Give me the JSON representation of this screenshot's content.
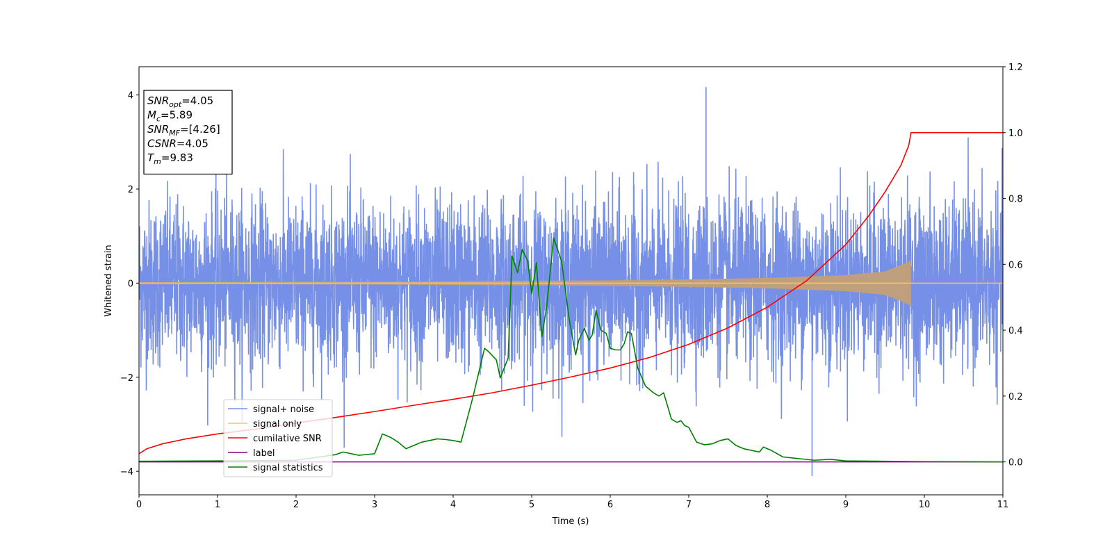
{
  "chart_data": {
    "type": "line",
    "xlabel": "Time (s)",
    "ylabel": "Whitened strain",
    "xlim": [
      0,
      11
    ],
    "ylim_left": [
      -4.5,
      4.6
    ],
    "ylim_right": [
      -0.1,
      1.2
    ],
    "x_ticks": [
      0,
      1,
      2,
      3,
      4,
      5,
      6,
      7,
      8,
      9,
      10,
      11
    ],
    "y_ticks_left": [
      -4,
      -2,
      0,
      2,
      4
    ],
    "y_ticks_right": [
      0.0,
      0.2,
      0.4,
      0.6,
      0.8,
      1.0,
      1.2
    ],
    "legend_placement": "lower-left",
    "info_box": [
      {
        "base": "SNR",
        "sub": "opt",
        "rest": "=4.05"
      },
      {
        "base": "M",
        "sub": "c",
        "rest": "=5.89"
      },
      {
        "base": "SNR",
        "sub": "MF",
        "rest": "=[4.26]"
      },
      {
        "base": "CSNR",
        "sub": "",
        "rest": "=4.05"
      },
      {
        "base": "T",
        "sub": "m",
        "rest": "=9.83"
      }
    ],
    "series": [
      {
        "name": "signal+ noise",
        "color": "#6f8ae6",
        "axis": "left",
        "kind": "noise",
        "x_range": [
          0,
          11
        ],
        "typical_range": [
          -2.0,
          2.0
        ],
        "extremes": {
          "max": 4.17,
          "min": -4.1
        }
      },
      {
        "name": "signal only",
        "color": "#f5c372",
        "fill_color": "#c0a07c",
        "axis": "left",
        "kind": "chirp",
        "x_range": [
          0,
          9.83
        ],
        "amplitude_envelope": {
          "x": [
            0,
            3,
            5,
            6,
            7,
            8,
            9,
            9.5,
            9.8,
            9.83
          ],
          "amp": [
            0.02,
            0.03,
            0.05,
            0.06,
            0.08,
            0.11,
            0.17,
            0.25,
            0.45,
            0.5
          ]
        }
      },
      {
        "name": "cumilative SNR",
        "color": "#ff0000",
        "axis": "right",
        "x": [
          0,
          0.1,
          0.3,
          0.6,
          1,
          1.5,
          2,
          2.5,
          3,
          3.5,
          4,
          4.5,
          5,
          5.5,
          6,
          6.5,
          7,
          7.5,
          8,
          8.5,
          9,
          9.3,
          9.5,
          9.7,
          9.8,
          9.83,
          11
        ],
        "y": [
          0.025,
          0.04,
          0.055,
          0.07,
          0.085,
          0.1,
          0.118,
          0.135,
          0.153,
          0.172,
          0.19,
          0.21,
          0.233,
          0.258,
          0.285,
          0.317,
          0.357,
          0.407,
          0.47,
          0.55,
          0.66,
          0.75,
          0.82,
          0.9,
          0.96,
          1.0,
          1.0
        ]
      },
      {
        "name": "label",
        "color": "#800080",
        "axis": "right",
        "x": [
          0,
          11
        ],
        "y": [
          0.0,
          0.0
        ]
      },
      {
        "name": "signal statistics",
        "color": "#008000",
        "axis": "right",
        "x": [
          0,
          1,
          2,
          2.3,
          2.5,
          2.6,
          2.8,
          3.0,
          3.1,
          3.2,
          3.3,
          3.4,
          3.5,
          3.6,
          3.7,
          3.8,
          3.9,
          4.0,
          4.1,
          4.2,
          4.25,
          4.4,
          4.45,
          4.55,
          4.6,
          4.7,
          4.75,
          4.82,
          4.88,
          4.95,
          5.0,
          5.06,
          5.13,
          5.19,
          5.28,
          5.38,
          5.48,
          5.56,
          5.6,
          5.67,
          5.73,
          5.77,
          5.82,
          5.88,
          5.95,
          6.0,
          6.07,
          6.13,
          6.18,
          6.22,
          6.27,
          6.35,
          6.45,
          6.55,
          6.62,
          6.68,
          6.78,
          6.85,
          6.9,
          6.95,
          7.0,
          7.1,
          7.2,
          7.3,
          7.4,
          7.5,
          7.6,
          7.7,
          7.8,
          7.9,
          7.95,
          8.05,
          8.2,
          8.4,
          8.6,
          8.8,
          9.0,
          9.5,
          10.0,
          11.0
        ],
        "y": [
          0.002,
          0.003,
          0.005,
          0.015,
          0.022,
          0.03,
          0.02,
          0.025,
          0.085,
          0.075,
          0.06,
          0.04,
          0.05,
          0.06,
          0.065,
          0.07,
          0.068,
          0.065,
          0.06,
          0.15,
          0.195,
          0.345,
          0.335,
          0.31,
          0.255,
          0.315,
          0.625,
          0.575,
          0.645,
          0.61,
          0.51,
          0.605,
          0.38,
          0.47,
          0.68,
          0.61,
          0.43,
          0.325,
          0.37,
          0.405,
          0.37,
          0.385,
          0.46,
          0.4,
          0.39,
          0.345,
          0.34,
          0.34,
          0.36,
          0.395,
          0.39,
          0.285,
          0.23,
          0.21,
          0.2,
          0.21,
          0.13,
          0.12,
          0.125,
          0.11,
          0.105,
          0.06,
          0.052,
          0.055,
          0.065,
          0.07,
          0.05,
          0.04,
          0.035,
          0.03,
          0.045,
          0.035,
          0.015,
          0.01,
          0.005,
          0.008,
          0.003,
          0.002,
          0.001,
          0.0
        ]
      }
    ]
  }
}
